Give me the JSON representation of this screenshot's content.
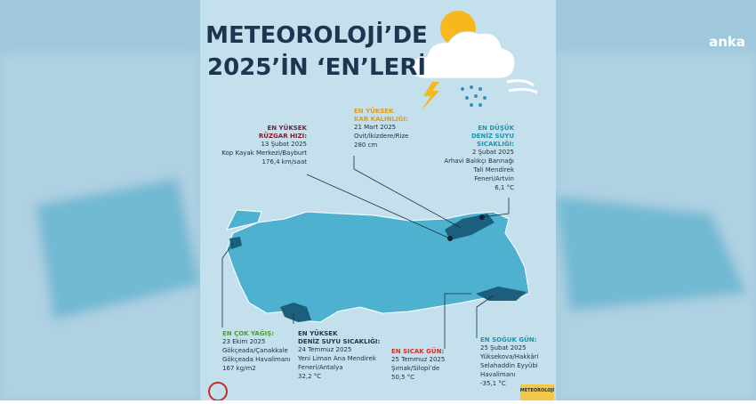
{
  "header": {
    "title_lines": [
      "METEOROLOJİ’DE",
      "2025’İN ‘EN’LERİ"
    ],
    "watermark": "anka"
  },
  "records": [
    {
      "label": [
        "EN YÜKSEK",
        "RÜZGAR HIZI:"
      ],
      "lines": [
        "13 Şubat 2025",
        "Kop Kayak Merkezi/Bayburt",
        "176,4 km/saat"
      ],
      "color": "#7a1f2e"
    },
    {
      "label": [
        "EN YÜKSEK",
        "KAR KALINLIĞI:"
      ],
      "lines": [
        "21 Mart 2025",
        "Ovit/İkizdere/Rize",
        "280 cm"
      ],
      "color": "#e39a1c"
    },
    {
      "label": [
        "EN DÜŞÜK",
        "DENİZ SUYU",
        "SICAKLIĞI:"
      ],
      "lines": [
        "2 Şubat 2025",
        "Arhavi Balıkçı Barınağı",
        "Tali Mendirek",
        "Feneri/Artvin",
        "6,1 °C"
      ],
      "color": "#1598b0"
    },
    {
      "label": [
        "EN ÇOK YAĞIŞ:"
      ],
      "lines": [
        "23 Ekim 2025",
        "Gökçeada/Çanakkale",
        "Gökçeada Havalimanı",
        "167 kg/m2"
      ],
      "color": "#4f9a3a"
    },
    {
      "label": [
        "EN YÜKSEK",
        "DENİZ SUYU SICAKLIĞI:"
      ],
      "lines": [
        "24 Temmuz 2025",
        "Yeni Liman Ana Mendirek",
        "Feneri/Antalya",
        "32,2 °C"
      ],
      "color": "#1d3550"
    },
    {
      "label": [
        "EN SICAK GÜN:"
      ],
      "lines": [
        "25 Temmuz 2025",
        "Şırnak/Silopi’de",
        "50,5 °C"
      ],
      "color": "#d2302a"
    },
    {
      "label": [
        "EN SOĞUK GÜN:"
      ],
      "lines": [
        "25 Şubat 2025",
        "Yüksekova/Hakkâri",
        "Selahaddin Eyyübi",
        "Havalimanı",
        "-35,1 °C"
      ],
      "color": "#1598b0"
    }
  ],
  "footer": {
    "logo": "METEOROLOJİ"
  }
}
